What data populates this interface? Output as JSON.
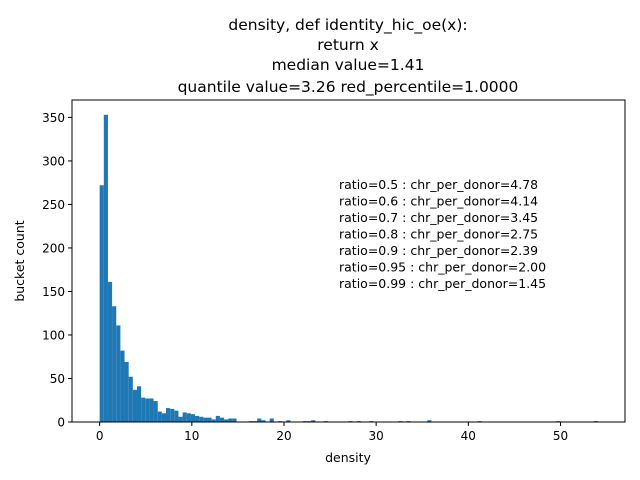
{
  "chart_data": {
    "type": "bar",
    "title_lines": [
      "density, def identity_hic_oe(x):",
      "return x",
      "median value=1.41",
      "quantile value=3.26  red_percentile=1.0000"
    ],
    "xlabel": "density",
    "ylabel": "bucket count",
    "xlim": [
      -3,
      57
    ],
    "ylim": [
      0,
      370
    ],
    "xticks": [
      0,
      10,
      20,
      30,
      40,
      50
    ],
    "yticks": [
      0,
      50,
      100,
      150,
      200,
      250,
      300,
      350
    ],
    "bin_width": 0.45,
    "bar_color": "#1f77b4",
    "highlight_color": "#d62728",
    "bins": [
      {
        "x": 0.0,
        "y": 272
      },
      {
        "x": 0.45,
        "y": 353
      },
      {
        "x": 0.9,
        "y": 161
      },
      {
        "x": 1.35,
        "y": 133
      },
      {
        "x": 1.8,
        "y": 111
      },
      {
        "x": 2.25,
        "y": 82
      },
      {
        "x": 2.7,
        "y": 69
      },
      {
        "x": 3.15,
        "y": 52
      },
      {
        "x": 3.6,
        "y": 37
      },
      {
        "x": 4.05,
        "y": 41
      },
      {
        "x": 4.5,
        "y": 28
      },
      {
        "x": 4.95,
        "y": 27
      },
      {
        "x": 5.4,
        "y": 27
      },
      {
        "x": 5.85,
        "y": 24
      },
      {
        "x": 6.3,
        "y": 12
      },
      {
        "x": 6.75,
        "y": 10
      },
      {
        "x": 7.2,
        "y": 16
      },
      {
        "x": 7.65,
        "y": 15
      },
      {
        "x": 8.1,
        "y": 13
      },
      {
        "x": 8.55,
        "y": 6
      },
      {
        "x": 9.0,
        "y": 11
      },
      {
        "x": 9.45,
        "y": 10
      },
      {
        "x": 9.9,
        "y": 9
      },
      {
        "x": 10.35,
        "y": 7
      },
      {
        "x": 10.8,
        "y": 6
      },
      {
        "x": 11.25,
        "y": 5
      },
      {
        "x": 11.7,
        "y": 5
      },
      {
        "x": 12.15,
        "y": 3
      },
      {
        "x": 12.6,
        "y": 7
      },
      {
        "x": 13.05,
        "y": 5
      },
      {
        "x": 13.5,
        "y": 3
      },
      {
        "x": 13.95,
        "y": 4
      },
      {
        "x": 14.4,
        "y": 4
      },
      {
        "x": 16.2,
        "y": 1
      },
      {
        "x": 16.65,
        "y": 1
      },
      {
        "x": 17.1,
        "y": 4
      },
      {
        "x": 17.55,
        "y": 2
      },
      {
        "x": 18.45,
        "y": 4
      },
      {
        "x": 19.35,
        "y": 1
      },
      {
        "x": 20.25,
        "y": 2
      },
      {
        "x": 22.05,
        "y": 1
      },
      {
        "x": 22.5,
        "y": 1
      },
      {
        "x": 22.95,
        "y": 2
      },
      {
        "x": 24.3,
        "y": 1
      },
      {
        "x": 27.0,
        "y": 1
      },
      {
        "x": 27.9,
        "y": 1
      },
      {
        "x": 29.25,
        "y": 1
      },
      {
        "x": 32.4,
        "y": 1
      },
      {
        "x": 33.3,
        "y": 1
      },
      {
        "x": 35.55,
        "y": 2
      },
      {
        "x": 41.0,
        "y": 1
      },
      {
        "x": 49.5,
        "y": 1
      },
      {
        "x": 53.6,
        "y": 1,
        "highlight": true
      }
    ],
    "annotations": [
      "ratio=0.5 : chr_per_donor=4.78",
      "ratio=0.6 : chr_per_donor=4.14",
      "ratio=0.7 : chr_per_donor=3.45",
      "ratio=0.8 : chr_per_donor=2.75",
      "ratio=0.9 : chr_per_donor=2.39",
      "ratio=0.95 : chr_per_donor=2.00",
      "ratio=0.99 : chr_per_donor=1.45"
    ]
  }
}
